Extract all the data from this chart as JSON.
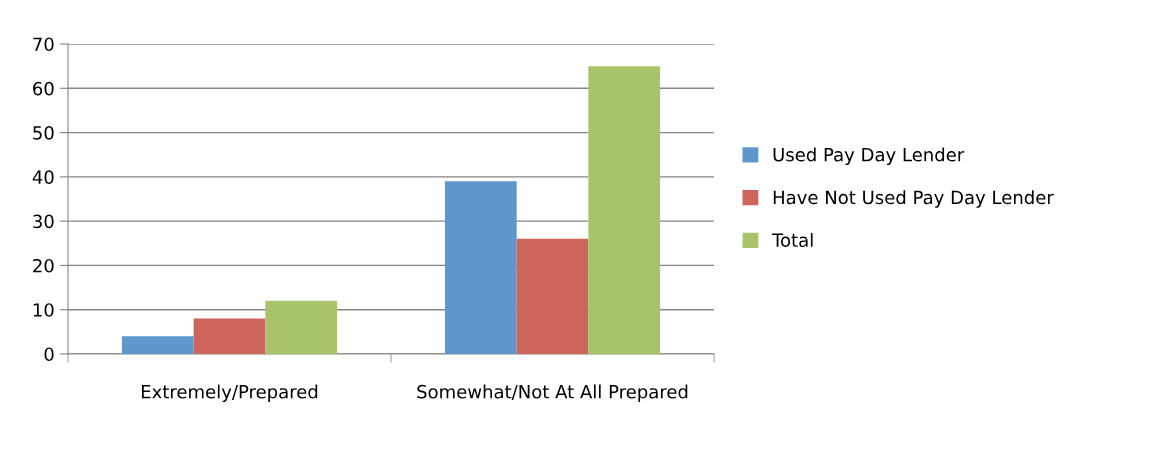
{
  "chart_data": {
    "type": "bar",
    "categories": [
      "Extremely/Prepared",
      "Somewhat/Not At All Prepared"
    ],
    "series": [
      {
        "name": "Used Pay Day Lender",
        "color": "#5f96cb",
        "values": [
          4,
          39
        ]
      },
      {
        "name": "Have Not Used Pay Day Lender",
        "color": "#cd655d",
        "values": [
          8,
          26
        ]
      },
      {
        "name": "Total",
        "color": "#a8c46a",
        "values": [
          12,
          65
        ]
      }
    ],
    "ylim": [
      0,
      70
    ],
    "yticks": [
      0,
      10,
      20,
      30,
      40,
      50,
      60,
      70
    ],
    "grid": "y",
    "legend": "right"
  }
}
